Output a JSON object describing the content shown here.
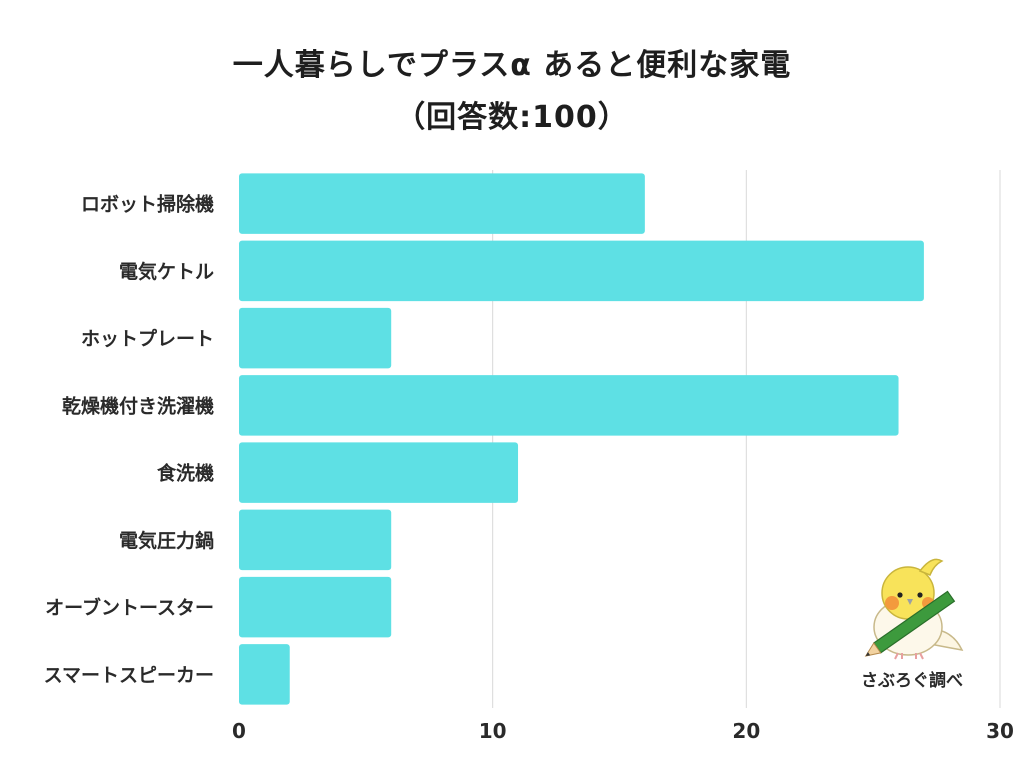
{
  "chart_data": {
    "type": "bar",
    "orientation": "horizontal",
    "title_lines": [
      "一人暮らしでプラスα あると便利な家電",
      "（回答数:100）"
    ],
    "categories": [
      "ロボット掃除機",
      "電気ケトル",
      "ホットプレート",
      "乾燥機付き洗濯機",
      "食洗機",
      "電気圧力鍋",
      "オーブントースター",
      "スマートスピーカー"
    ],
    "values": [
      16,
      27,
      6,
      26,
      11,
      6,
      6,
      2
    ],
    "xlim": [
      0,
      30
    ],
    "xticks": [
      0,
      10,
      20,
      30
    ],
    "grid": true,
    "bar_color": "#5ee0e4",
    "grid_color": "#d9d9d9"
  },
  "credit": {
    "text": "さぶろぐ調べ",
    "icon": "cockatiel-with-pencil-icon"
  }
}
